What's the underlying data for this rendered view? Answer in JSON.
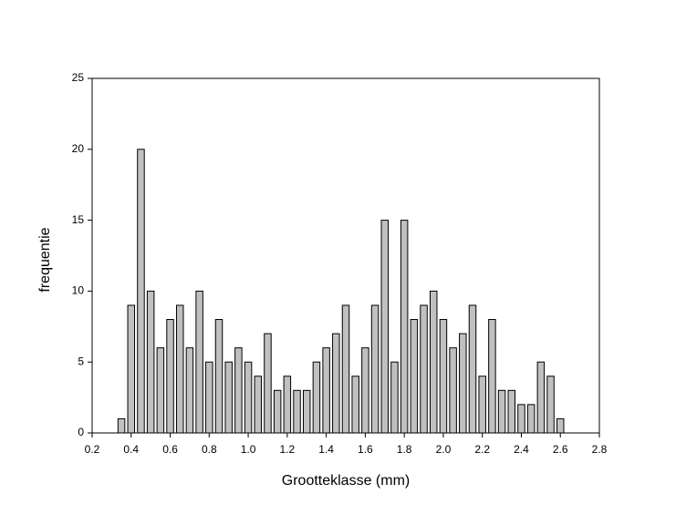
{
  "chart_data": {
    "type": "bar",
    "x": [
      0.35,
      0.4,
      0.45,
      0.5,
      0.55,
      0.6,
      0.65,
      0.7,
      0.75,
      0.8,
      0.85,
      0.9,
      0.95,
      1.0,
      1.05,
      1.1,
      1.15,
      1.2,
      1.25,
      1.3,
      1.35,
      1.4,
      1.45,
      1.5,
      1.55,
      1.6,
      1.65,
      1.7,
      1.75,
      1.8,
      1.85,
      1.9,
      1.95,
      2.0,
      2.05,
      2.1,
      2.15,
      2.2,
      2.25,
      2.3,
      2.35,
      2.4,
      2.45,
      2.5,
      2.55,
      2.6
    ],
    "values": [
      1,
      9,
      20,
      10,
      6,
      8,
      9,
      6,
      10,
      5,
      8,
      5,
      6,
      5,
      4,
      7,
      3,
      4,
      3,
      3,
      5,
      6,
      7,
      9,
      4,
      6,
      9,
      15,
      5,
      15,
      8,
      9,
      10,
      8,
      6,
      7,
      9,
      4,
      8,
      3,
      3,
      2,
      2,
      5,
      4,
      1
    ],
    "color": "#c0c0c0",
    "xlabel": "Grootteklasse (mm)",
    "ylabel": "frequentie",
    "xlim": [
      0.2,
      2.8
    ],
    "xticks": [
      0.2,
      0.4,
      0.6,
      0.8,
      {
        "value": 1,
        "label": "1.0"
      },
      1.2,
      1.4,
      1.6,
      1.8,
      {
        "value": 2,
        "label": "2.0"
      },
      2.2,
      2.4,
      2.6,
      2.8
    ],
    "ylim": [
      0,
      25
    ],
    "yticks": [
      0,
      5,
      10,
      15,
      20,
      25
    ]
  }
}
